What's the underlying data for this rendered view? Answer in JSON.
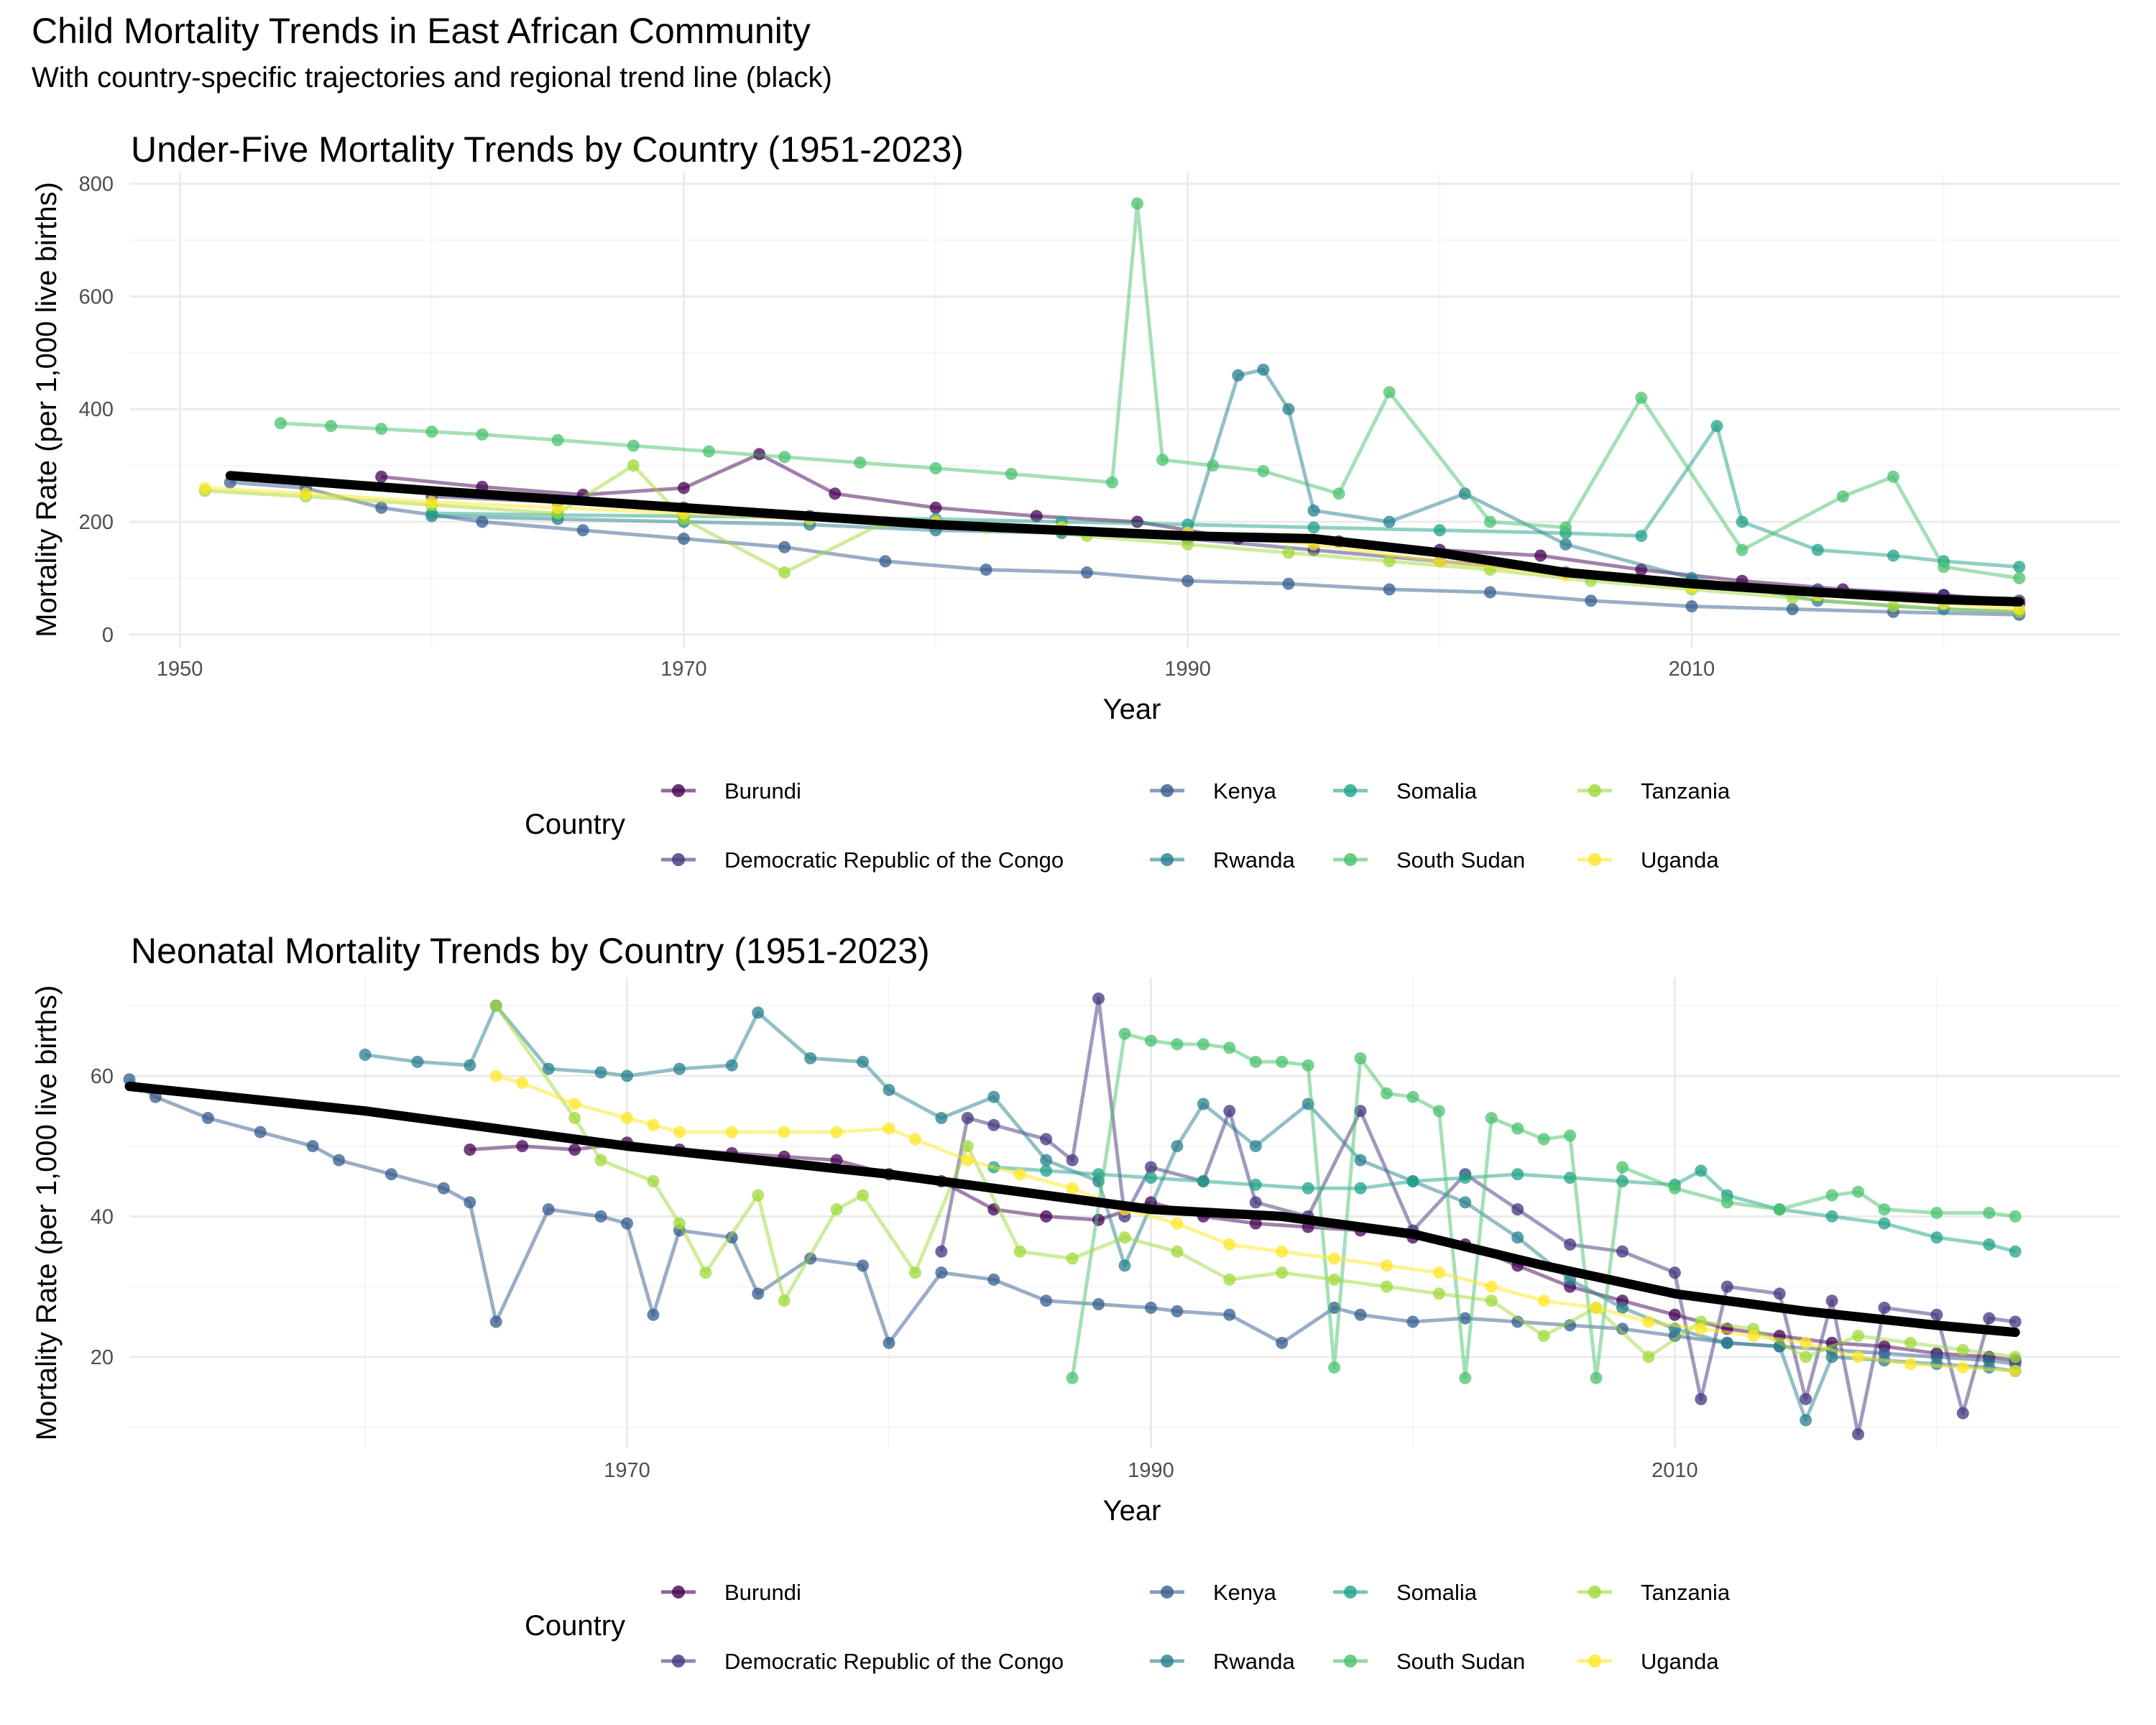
{
  "page": {
    "title": "Child Mortality Trends in East African Community",
    "subtitle": "With country-specific trajectories and regional trend line (black)"
  },
  "colors": {
    "Burundi": "#440154",
    "Democratic Republic of the Congo": "#46337E",
    "Kenya": "#365C8D",
    "Rwanda": "#277F8E",
    "Somalia": "#1FA187",
    "South Sudan": "#4AC16D",
    "Tanzania": "#9FDA3A",
    "Uganda": "#FDE725",
    "trend": "#000000",
    "grid_major": "#ebebeb",
    "grid_minor": "#f5f5f5"
  },
  "legend": {
    "title": "Country",
    "entries": [
      "Burundi",
      "Democratic Republic of the Congo",
      "Kenya",
      "Rwanda",
      "Somalia",
      "South Sudan",
      "Tanzania",
      "Uganda"
    ],
    "placement": "bottom"
  },
  "chart_data": [
    {
      "type": "line",
      "title": "Under-Five Mortality Trends by Country (1951-2023)",
      "xlabel": "Year",
      "ylabel": "Mortality Rate (per 1,000 live births)",
      "xlim": [
        1948,
        2027
      ],
      "ylim": [
        -22,
        820
      ],
      "xticks": [
        1950,
        1970,
        1990,
        2010
      ],
      "yticks": [
        0,
        200,
        400,
        600,
        800
      ],
      "grid": true,
      "series": [
        {
          "name": "Burundi",
          "x": [
            1958,
            1962,
            1966,
            1970,
            1973,
            1976,
            1980,
            1984,
            1988,
            1992,
            1996,
            2000,
            2004,
            2008,
            2012,
            2016,
            2020,
            2023
          ],
          "y": [
            280,
            262,
            248,
            260,
            320,
            250,
            225,
            210,
            200,
            170,
            165,
            150,
            140,
            115,
            95,
            80,
            70,
            55
          ]
        },
        {
          "name": "Democratic Republic of the Congo",
          "x": [
            1960,
            1965,
            1970,
            1975,
            1980,
            1985,
            1990,
            1995,
            2000,
            2005,
            2010,
            2015,
            2020,
            2023
          ],
          "y": [
            245,
            235,
            225,
            210,
            200,
            185,
            170,
            150,
            130,
            110,
            95,
            80,
            70,
            60
          ]
        },
        {
          "name": "Kenya",
          "x": [
            1952,
            1955,
            1958,
            1962,
            1966,
            1970,
            1974,
            1978,
            1982,
            1986,
            1990,
            1994,
            1998,
            2002,
            2006,
            2010,
            2014,
            2018,
            2023
          ],
          "y": [
            270,
            260,
            225,
            200,
            185,
            170,
            155,
            130,
            115,
            110,
            95,
            90,
            80,
            75,
            60,
            50,
            45,
            40,
            35
          ]
        },
        {
          "name": "Rwanda",
          "x": [
            1960,
            1965,
            1970,
            1975,
            1980,
            1985,
            1990,
            1992,
            1993,
            1994,
            1995,
            1998,
            2001,
            2005,
            2010,
            2015,
            2020,
            2023
          ],
          "y": [
            210,
            205,
            200,
            195,
            185,
            180,
            170,
            460,
            470,
            400,
            220,
            200,
            250,
            160,
            100,
            60,
            45,
            40
          ]
        },
        {
          "name": "Somalia",
          "x": [
            1960,
            1965,
            1970,
            1975,
            1980,
            1985,
            1990,
            1995,
            2000,
            2005,
            2008,
            2011,
            2012,
            2015,
            2018,
            2020,
            2023
          ],
          "y": [
            215,
            212,
            210,
            208,
            205,
            200,
            195,
            190,
            185,
            180,
            175,
            370,
            200,
            150,
            140,
            130,
            120
          ]
        },
        {
          "name": "South Sudan",
          "x": [
            1954,
            1956,
            1958,
            1960,
            1962,
            1965,
            1968,
            1971,
            1974,
            1977,
            1980,
            1983,
            1987,
            1988,
            1989,
            1991,
            1993,
            1996,
            1998,
            2002,
            2005,
            2008,
            2012,
            2016,
            2018,
            2020,
            2023
          ],
          "y": [
            375,
            370,
            365,
            360,
            355,
            345,
            335,
            325,
            315,
            305,
            295,
            285,
            270,
            765,
            310,
            300,
            290,
            250,
            430,
            200,
            190,
            420,
            150,
            245,
            280,
            120,
            100
          ]
        },
        {
          "name": "Tanzania",
          "x": [
            1951,
            1955,
            1960,
            1965,
            1968,
            1970,
            1974,
            1978,
            1982,
            1986,
            1990,
            1994,
            1998,
            2002,
            2006,
            2010,
            2014,
            2018,
            2023
          ],
          "y": [
            255,
            245,
            230,
            215,
            300,
            205,
            110,
            200,
            190,
            175,
            160,
            145,
            130,
            115,
            95,
            80,
            65,
            50,
            40
          ]
        },
        {
          "name": "Uganda",
          "x": [
            1951,
            1955,
            1960,
            1965,
            1970,
            1975,
            1980,
            1985,
            1990,
            1995,
            2000,
            2005,
            2010,
            2015,
            2020,
            2023
          ],
          "y": [
            260,
            250,
            235,
            225,
            215,
            205,
            200,
            190,
            180,
            160,
            130,
            105,
            85,
            70,
            55,
            45
          ]
        }
      ],
      "trend": {
        "name": "Regional trend",
        "x": [
          1952,
          1960,
          1970,
          1980,
          1990,
          1995,
          2000,
          2005,
          2010,
          2015,
          2020,
          2023
        ],
        "y": [
          282,
          255,
          225,
          195,
          175,
          170,
          145,
          110,
          90,
          75,
          62,
          58
        ]
      }
    },
    {
      "type": "line",
      "title": "Neonatal Mortality Trends by Country (1951-2023)",
      "xlabel": "Year",
      "ylabel": "Mortality Rate (per 1,000 live births)",
      "xlim": [
        1951,
        2027
      ],
      "ylim": [
        7,
        74
      ],
      "xticks": [
        1970,
        1990,
        2010
      ],
      "yticks": [
        20,
        40,
        60
      ],
      "grid": true,
      "series": [
        {
          "name": "Burundi",
          "x": [
            1964,
            1966,
            1968,
            1970,
            1972,
            1974,
            1976,
            1978,
            1980,
            1982,
            1984,
            1986,
            1988,
            1990,
            1992,
            1994,
            1996,
            1998,
            2000,
            2002,
            2004,
            2006,
            2008,
            2010,
            2012,
            2014,
            2016,
            2018,
            2020,
            2022,
            2023
          ],
          "y": [
            49.5,
            50,
            49.5,
            50.5,
            49.5,
            49,
            48.5,
            48,
            46,
            45,
            41,
            40,
            39.5,
            42,
            40,
            39,
            38.5,
            38,
            37,
            36,
            33,
            30,
            28,
            26,
            24,
            23,
            22,
            21.5,
            20.5,
            20,
            19.5
          ]
        },
        {
          "name": "Democratic Republic of the Congo",
          "x": [
            1982,
            1983,
            1984,
            1986,
            1987,
            1988,
            1989,
            1990,
            1992,
            1993,
            1994,
            1996,
            1998,
            2000,
            2002,
            2004,
            2006,
            2008,
            2010,
            2011,
            2012,
            2014,
            2015,
            2016,
            2017,
            2018,
            2020,
            2021,
            2022,
            2023
          ],
          "y": [
            35,
            54,
            53,
            51,
            48,
            71,
            40,
            47,
            45,
            55,
            42,
            40,
            55,
            38,
            46,
            41,
            36,
            35,
            32,
            14,
            30,
            29,
            14,
            28,
            9,
            27,
            26,
            12,
            25.5,
            25
          ]
        },
        {
          "name": "Kenya",
          "x": [
            1951,
            1952,
            1954,
            1956,
            1958,
            1959,
            1961,
            1963,
            1964,
            1965,
            1967,
            1969,
            1970,
            1971,
            1972,
            1974,
            1975,
            1977,
            1979,
            1980,
            1982,
            1984,
            1986,
            1988,
            1990,
            1991,
            1993,
            1995,
            1997,
            1998,
            2000,
            2002,
            2004,
            2006,
            2008,
            2010,
            2012,
            2014,
            2016,
            2018,
            2020,
            2022,
            2023
          ],
          "y": [
            59.5,
            57,
            54,
            52,
            50,
            48,
            46,
            44,
            42,
            25,
            41,
            40,
            39,
            26,
            38,
            37,
            29,
            34,
            33,
            22,
            32,
            31,
            28,
            27.5,
            27,
            26.5,
            26,
            22,
            27,
            26,
            25,
            25.5,
            25,
            24.5,
            24,
            23,
            22,
            21.5,
            21,
            20.5,
            20,
            19.5,
            19
          ]
        },
        {
          "name": "Rwanda",
          "x": [
            1960,
            1962,
            1964,
            1965,
            1967,
            1969,
            1970,
            1972,
            1974,
            1975,
            1977,
            1979,
            1980,
            1982,
            1984,
            1986,
            1988,
            1989,
            1991,
            1992,
            1994,
            1996,
            1998,
            2000,
            2002,
            2004,
            2006,
            2008,
            2010,
            2012,
            2014,
            2015,
            2016,
            2018,
            2020,
            2022,
            2023
          ],
          "y": [
            63,
            62,
            61.5,
            70,
            61,
            60.5,
            60,
            61,
            61.5,
            69,
            62.5,
            62,
            58,
            54,
            57,
            48,
            45,
            33,
            50,
            56,
            50,
            56,
            48,
            45,
            42,
            37,
            31,
            27,
            24,
            22,
            21.5,
            11,
            20,
            19.5,
            19,
            18.5,
            18
          ]
        },
        {
          "name": "Somalia",
          "x": [
            1984,
            1986,
            1988,
            1990,
            1992,
            1994,
            1996,
            1998,
            2000,
            2002,
            2004,
            2006,
            2008,
            2010,
            2011,
            2012,
            2014,
            2016,
            2018,
            2020,
            2022,
            2023
          ],
          "y": [
            47,
            46.5,
            46,
            45.5,
            45,
            44.5,
            44,
            44,
            45,
            45.5,
            46,
            45.5,
            45,
            44.5,
            46.5,
            43,
            41,
            40,
            39,
            37,
            36,
            35
          ]
        },
        {
          "name": "South Sudan",
          "x": [
            1987,
            1989,
            1990,
            1991,
            1992,
            1993,
            1994,
            1995,
            1996,
            1997,
            1998,
            1999,
            2000,
            2001,
            2002,
            2003,
            2004,
            2005,
            2006,
            2007,
            2008,
            2010,
            2012,
            2014,
            2016,
            2017,
            2018,
            2020,
            2022,
            2023
          ],
          "y": [
            17,
            66,
            65,
            64.5,
            64.5,
            64,
            62,
            62,
            61.5,
            18.5,
            62.5,
            57.5,
            57,
            55,
            17,
            54,
            52.5,
            51,
            51.5,
            17,
            47,
            44,
            42,
            41,
            43,
            43.5,
            41,
            40.5,
            40.5,
            40
          ]
        },
        {
          "name": "Tanzania",
          "x": [
            1965,
            1968,
            1969,
            1971,
            1972,
            1973,
            1975,
            1976,
            1978,
            1979,
            1981,
            1983,
            1985,
            1987,
            1989,
            1991,
            1993,
            1995,
            1997,
            1999,
            2001,
            2003,
            2005,
            2007,
            2009,
            2011,
            2013,
            2015,
            2017,
            2019,
            2021,
            2023
          ],
          "y": [
            70,
            54,
            48,
            45,
            39,
            32,
            43,
            28,
            41,
            43,
            32,
            50,
            35,
            34,
            37,
            35,
            31,
            32,
            31,
            30,
            29,
            28,
            23,
            27,
            20,
            25,
            24,
            20,
            23,
            22,
            21,
            20
          ]
        },
        {
          "name": "Uganda",
          "x": [
            1965,
            1966,
            1968,
            1970,
            1971,
            1972,
            1974,
            1976,
            1978,
            1980,
            1981,
            1983,
            1985,
            1987,
            1989,
            1991,
            1993,
            1995,
            1997,
            1999,
            2001,
            2003,
            2005,
            2007,
            2009,
            2011,
            2013,
            2015,
            2017,
            2019,
            2021,
            2023
          ],
          "y": [
            60,
            59,
            56,
            54,
            53,
            52,
            52,
            52,
            52,
            52.5,
            51,
            48,
            46,
            44,
            41,
            39,
            36,
            35,
            34,
            33,
            32,
            30,
            28,
            27,
            25,
            24,
            23,
            22,
            20,
            19,
            18.5,
            18
          ]
        }
      ],
      "trend": {
        "name": "Regional trend",
        "x": [
          1951,
          1960,
          1970,
          1980,
          1990,
          1995,
          2000,
          2005,
          2010,
          2015,
          2020,
          2023
        ],
        "y": [
          58.5,
          55,
          50,
          46,
          41,
          40,
          37.5,
          33,
          29,
          26.5,
          24.5,
          23.5
        ]
      }
    }
  ]
}
